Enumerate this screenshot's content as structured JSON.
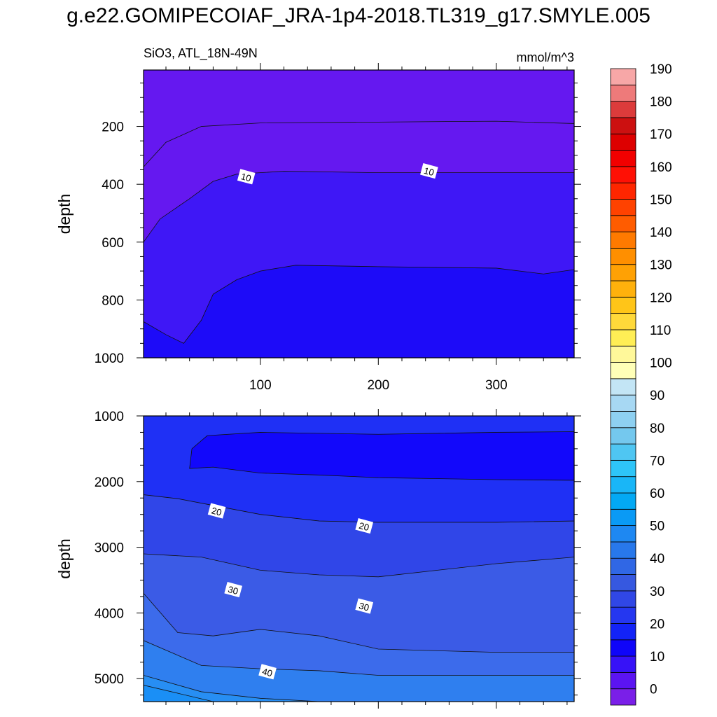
{
  "page_title": "g.e22.GOMIPECOIAF_JRA-1p4-2018.TL319_g17.SMYLE.005",
  "chart_data": [
    {
      "type": "contour",
      "variable_label": "SiO3, ATL_18N-49N",
      "units_label": "mmol/m^3",
      "ylabel": "depth",
      "xlim": [
        1,
        366
      ],
      "ylim": [
        1000,
        5
      ],
      "y_inverted": true,
      "x_ticks": [
        100,
        200,
        300
      ],
      "y_ticks": [
        200,
        400,
        600,
        800,
        1000
      ],
      "contour_labels": [
        {
          "text": "10",
          "x": 88,
          "y": 375
        },
        {
          "text": "10",
          "x": 243,
          "y": 355
        }
      ],
      "bands": [
        {
          "level_min": 0,
          "level_max": 5,
          "color": "#6518F0",
          "upper_boundary": [
            [
              1,
              340
            ],
            [
              20,
              255
            ],
            [
              50,
              200
            ],
            [
              100,
              188
            ],
            [
              200,
              185
            ],
            [
              300,
              182
            ],
            [
              366,
              190
            ]
          ]
        },
        {
          "level_min": 5,
          "level_max": 10,
          "color": "#3F17F6",
          "upper_boundary": [
            [
              1,
              600
            ],
            [
              15,
              520
            ],
            [
              40,
              450
            ],
            [
              60,
              390
            ],
            [
              80,
              365
            ],
            [
              120,
              355
            ],
            [
              200,
              360
            ],
            [
              300,
              360
            ],
            [
              366,
              360
            ]
          ]
        },
        {
          "level_min": 10,
          "level_max": 15,
          "color": "#1D0BF8",
          "upper_boundary": [
            [
              1,
              875
            ],
            [
              20,
              920
            ],
            [
              35,
              950
            ],
            [
              50,
              870
            ],
            [
              60,
              780
            ],
            [
              80,
              730
            ],
            [
              100,
              700
            ],
            [
              130,
              680
            ],
            [
              200,
              685
            ],
            [
              300,
              690
            ],
            [
              340,
              710
            ],
            [
              366,
              695
            ]
          ]
        },
        {
          "level_min": 15,
          "level_max": 20,
          "color": "#1C2CF5",
          "upper_boundary": []
        }
      ]
    },
    {
      "type": "contour",
      "ylabel": "depth",
      "xlim": [
        1,
        366
      ],
      "ylim": [
        5350,
        1000
      ],
      "y_inverted": true,
      "x_ticks": [
        100,
        200,
        300
      ],
      "y_ticks": [
        1000,
        2000,
        3000,
        4000,
        5000
      ],
      "contour_labels": [
        {
          "text": "20",
          "x": 63,
          "y": 2450
        },
        {
          "text": "20",
          "x": 188,
          "y": 2680
        },
        {
          "text": "30",
          "x": 77,
          "y": 3650
        },
        {
          "text": "30",
          "x": 188,
          "y": 3900
        },
        {
          "text": "40",
          "x": 106,
          "y": 4900
        }
      ],
      "bands": [
        {
          "level_min": 15,
          "level_max": 20,
          "color": "#1F30F5",
          "upper_boundary": []
        },
        {
          "level_min": 10,
          "level_max": 15,
          "color": "#1208FB",
          "closed_region": [
            [
              40,
              1800
            ],
            [
              42,
              1500
            ],
            [
              55,
              1300
            ],
            [
              100,
              1250
            ],
            [
              200,
              1280
            ],
            [
              300,
              1250
            ],
            [
              366,
              1240
            ],
            [
              366,
              1980
            ],
            [
              300,
              1970
            ],
            [
              200,
              1940
            ],
            [
              150,
              1900
            ],
            [
              100,
              1870
            ],
            [
              60,
              1780
            ]
          ]
        },
        {
          "level_min": 20,
          "level_max": 25,
          "color": "#3046E8",
          "upper_boundary": [
            [
              1,
              2200
            ],
            [
              30,
              2260
            ],
            [
              100,
              2500
            ],
            [
              150,
              2600
            ],
            [
              200,
              2620
            ],
            [
              300,
              2620
            ],
            [
              366,
              2600
            ]
          ]
        },
        {
          "level_min": 25,
          "level_max": 30,
          "color": "#3B5BE6",
          "upper_boundary": [
            [
              1,
              3100
            ],
            [
              50,
              3150
            ],
            [
              100,
              3350
            ],
            [
              150,
              3420
            ],
            [
              200,
              3450
            ],
            [
              300,
              3250
            ],
            [
              366,
              3150
            ]
          ]
        },
        {
          "level_min": 30,
          "level_max": 35,
          "color": "#3C6BEB",
          "upper_boundary": [
            [
              1,
              3700
            ],
            [
              30,
              4300
            ],
            [
              60,
              4350
            ],
            [
              100,
              4250
            ],
            [
              150,
              4350
            ],
            [
              200,
              4550
            ],
            [
              300,
              4600
            ],
            [
              366,
              4600
            ]
          ]
        },
        {
          "level_min": 35,
          "level_max": 40,
          "color": "#2F7FEF",
          "upper_boundary": [
            [
              1,
              4420
            ],
            [
              50,
              4800
            ],
            [
              100,
              4850
            ],
            [
              150,
              4880
            ],
            [
              200,
              4950
            ],
            [
              366,
              4950
            ]
          ]
        },
        {
          "level_min": 40,
          "level_max": 45,
          "color": "#278EF3",
          "upper_boundary": [
            [
              1,
              4950
            ],
            [
              50,
              5200
            ],
            [
              100,
              5300
            ],
            [
              150,
              5350
            ]
          ]
        },
        {
          "level_min": 45,
          "level_max": 50,
          "color": "#1A8FF6",
          "upper_boundary": [
            [
              1,
              5100
            ],
            [
              60,
              5350
            ]
          ]
        }
      ]
    }
  ],
  "colorbar": {
    "levels": [
      "0",
      "10",
      "20",
      "30",
      "40",
      "50",
      "60",
      "70",
      "80",
      "90",
      "100",
      "110",
      "120",
      "130",
      "140",
      "150",
      "160",
      "170",
      "180",
      "190"
    ],
    "colors": [
      "#7A1FE8",
      "#5B14F2",
      "#3712F7",
      "#0F05F9",
      "#1323F7",
      "#2537F0",
      "#3047E6",
      "#3658E0",
      "#3067E5",
      "#2878EB",
      "#1E88F2",
      "#0A9AF5",
      "#03A9F4",
      "#19B6F7",
      "#2EC5F8",
      "#4FC6F2",
      "#74C8EE",
      "#8ED0F1",
      "#A7D8F3",
      "#C3E5F5",
      "#FFFFB7",
      "#FFF89A",
      "#FFEE55",
      "#FFD93A",
      "#FFC518",
      "#FFB10C",
      "#FFA104",
      "#FF8F00",
      "#FF7A00",
      "#FF5C00",
      "#FF4200",
      "#FF2600",
      "#FF1005",
      "#F20000",
      "#DD0000",
      "#CC1010",
      "#DC3B3B",
      "#EE7A7A",
      "#F7A7A7"
    ]
  }
}
